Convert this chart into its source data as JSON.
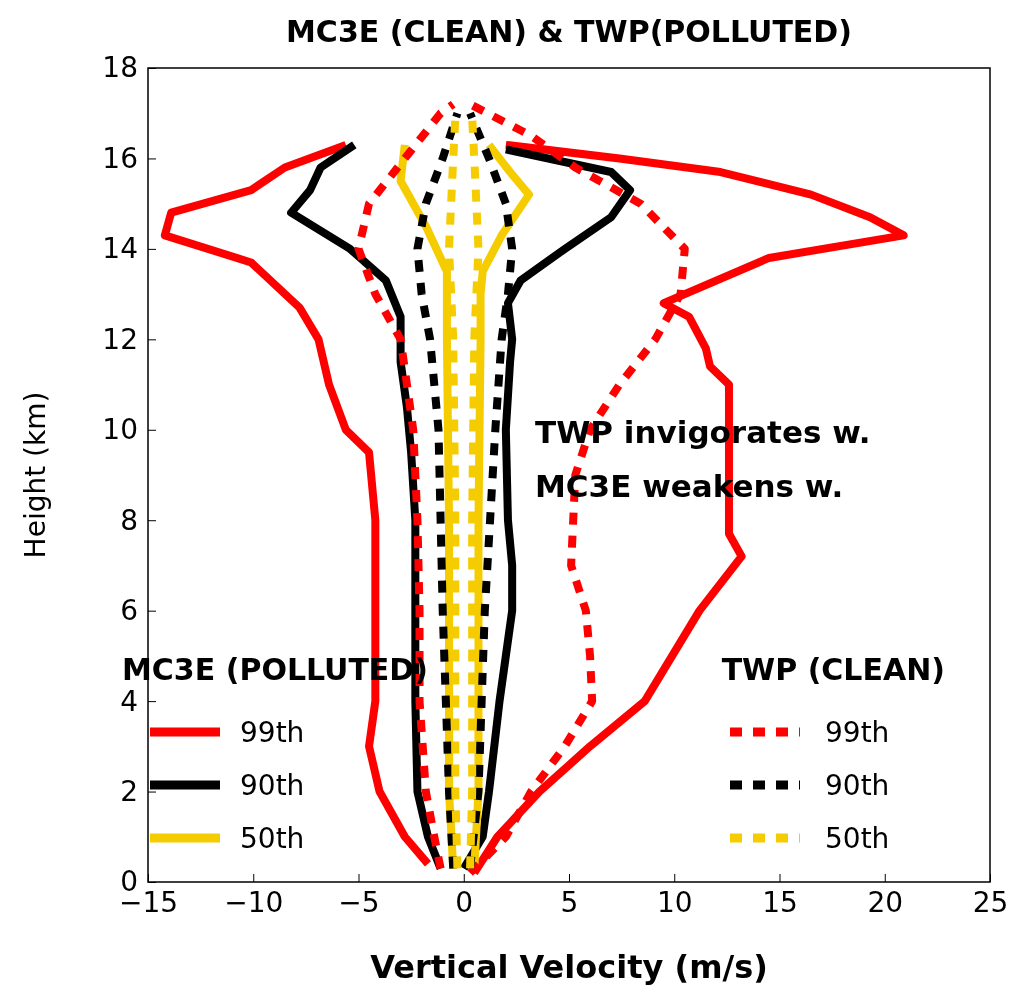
{
  "chart_data": {
    "type": "line",
    "title": "MC3E (CLEAN) & TWP(POLLUTED)",
    "xlabel": "Vertical Velocity (m/s)",
    "ylabel": "Height (km)",
    "xlim": [
      -15,
      25
    ],
    "xticks": [
      -15,
      -10,
      -5,
      0,
      5,
      10,
      15,
      20,
      25
    ],
    "ylim": [
      0,
      18
    ],
    "yticks": [
      0,
      2,
      4,
      6,
      8,
      10,
      12,
      14,
      16,
      18
    ],
    "grid": false,
    "legend": "bottom",
    "marker": "none",
    "annotations": [
      "MC3E (POLLUTED)",
      "TWP (CLEAN)",
      "TWP invigorates w.",
      "MC3E weakens w."
    ],
    "series": [
      {
        "name": "99th",
        "color": "#ff0000",
        "line_style": "solid",
        "x": [
          0.5,
          1.6,
          3.6,
          6.0,
          8.6,
          11.2,
          13.2,
          12.6,
          12.6,
          11.7,
          11.5,
          10.7,
          9.5,
          14.5,
          20.9,
          19.3,
          16.5,
          12.2,
          7.4,
          2.0
        ],
        "values": [
          0.2,
          1,
          2,
          3,
          4,
          6,
          7.2,
          7.7,
          11,
          11.4,
          11.8,
          12.5,
          12.8,
          13.8,
          14.3,
          14.7,
          15.2,
          15.7,
          16,
          16.3
        ]
      },
      {
        "color": "#ff0000",
        "line_style": "solid",
        "x": [
          -1.7,
          -2.8,
          -4.0,
          -4.5,
          -4.2,
          -4.2,
          -4.2,
          -4.5,
          -5.6,
          -6.4,
          -6.9,
          -7.8,
          -10.1,
          -14.2,
          -13.9,
          -10.1,
          -8.5,
          -5.6
        ],
        "values": [
          0.4,
          1,
          2,
          3,
          4,
          6,
          8,
          9.5,
          10,
          11,
          12,
          12.7,
          13.7,
          14.3,
          14.8,
          15.3,
          15.8,
          16.3
        ]
      },
      {
        "name": "90th",
        "color": "#000000",
        "line_style": "solid",
        "x": [
          0,
          0.9,
          1.2,
          1.7,
          2.0,
          2.3,
          2.3,
          2.1,
          2.0,
          2.2,
          2.3,
          2.1,
          2.7,
          4.8,
          7.0,
          7.9,
          7.0,
          2.0
        ],
        "values": [
          0.3,
          1,
          2,
          4,
          5,
          6,
          7,
          8,
          10,
          11.5,
          12,
          12.8,
          13.3,
          14,
          14.7,
          15.3,
          15.7,
          16.2
        ]
      },
      {
        "color": "#000000",
        "line_style": "solid",
        "x": [
          -1.1,
          -1.7,
          -2.2,
          -2.3,
          -2.3,
          -2.3,
          -2.5,
          -2.7,
          -3.0,
          -3.0,
          -3.7,
          -5.4,
          -8.2,
          -7.3,
          -6.8,
          -5.2
        ],
        "values": [
          0.3,
          1,
          2,
          4,
          6,
          8,
          9.5,
          10.5,
          11.5,
          12.5,
          13.3,
          14,
          14.8,
          15.3,
          15.8,
          16.3
        ]
      },
      {
        "name": "50th",
        "color": "#f5cc00",
        "line_style": "solid",
        "x": [
          0.5,
          0.7,
          0.7,
          0.8,
          0.8,
          0.9,
          1.8,
          3.1,
          2.2,
          1.2
        ],
        "values": [
          0.3,
          2,
          8,
          12,
          13,
          13.5,
          14.3,
          15.2,
          15.7,
          16.3
        ]
      },
      {
        "color": "#f5cc00",
        "line_style": "solid",
        "x": [
          -0.5,
          -0.7,
          -0.7,
          -0.8,
          -0.8,
          -1.8,
          -3.0,
          -2.8
        ],
        "values": [
          0.3,
          2,
          8,
          12,
          13.5,
          14.5,
          15.5,
          16.3
        ]
      },
      {
        "name": "99th",
        "color": "#ff0000",
        "line_style": "dashed",
        "x": [
          0.3,
          2.0,
          3.2,
          4.8,
          6.1,
          6.0,
          5.8,
          5.1,
          5.2,
          5.3,
          6.0,
          7.4,
          9.1,
          10.3,
          10.5,
          8.4,
          5.3,
          3.2,
          0.3
        ],
        "values": [
          0.2,
          1,
          2,
          3,
          4,
          5,
          6,
          7,
          8,
          9,
          10,
          11,
          12,
          13,
          14,
          15,
          15.8,
          16.5,
          17.2
        ]
      },
      {
        "color": "#ff0000",
        "line_style": "dashed",
        "x": [
          -1.1,
          -1.4,
          -1.8,
          -2.1,
          -2.1,
          -2.2,
          -2.4,
          -2.7,
          -3.0,
          -4.2,
          -5.0,
          -4.5,
          -2.8,
          -1.1,
          -0.5
        ],
        "values": [
          0.3,
          1,
          2,
          4,
          6,
          8,
          10,
          11,
          12,
          13,
          14,
          15,
          16,
          17,
          17.2
        ]
      },
      {
        "name": "90th",
        "color": "#000000",
        "line_style": "dashed",
        "x": [
          0.3,
          0.7,
          1.0,
          1.5,
          1.8,
          2.1,
          2.3,
          2.0,
          1.2,
          0.3
        ],
        "values": [
          0.3,
          2,
          6,
          10,
          12,
          13,
          14,
          15,
          16,
          17
        ]
      },
      {
        "color": "#000000",
        "line_style": "dashed",
        "x": [
          -0.5,
          -0.7,
          -1.0,
          -1.2,
          -1.6,
          -2.0,
          -2.2,
          -1.8,
          -1.0,
          -0.3
        ],
        "values": [
          0.3,
          2,
          6,
          10,
          12,
          13,
          14,
          15,
          16,
          17
        ]
      },
      {
        "name": "50th",
        "color": "#f5cc00",
        "line_style": "dashed",
        "x": [
          0.3,
          0.4,
          0.4,
          0.5,
          0.7,
          0.5,
          0.4
        ],
        "values": [
          0.3,
          2,
          8,
          12,
          14,
          16,
          16.9
        ]
      },
      {
        "color": "#f5cc00",
        "line_style": "dashed",
        "x": [
          -0.3,
          -0.4,
          -0.4,
          -0.5,
          -0.7,
          -0.5,
          -0.4
        ],
        "values": [
          0.3,
          2,
          8,
          12,
          14,
          16,
          16.9
        ]
      }
    ]
  }
}
